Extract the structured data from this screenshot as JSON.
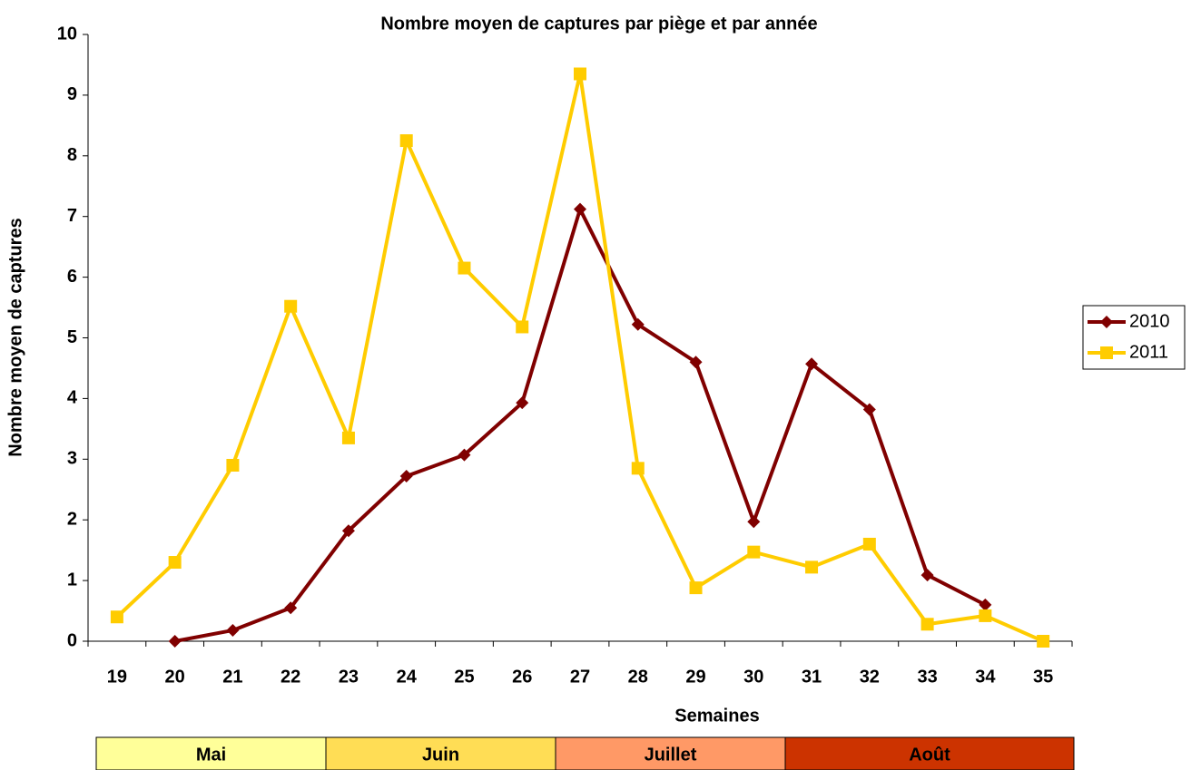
{
  "chart_data": {
    "type": "line",
    "title": "Nombre moyen de captures par piège et par année",
    "x_label": "Semaines",
    "y_label": "Nombre moyen de captures",
    "categories": [
      "19",
      "20",
      "21",
      "22",
      "23",
      "24",
      "25",
      "26",
      "27",
      "28",
      "29",
      "30",
      "31",
      "32",
      "33",
      "34",
      "35"
    ],
    "series": [
      {
        "name": "2010",
        "color": "#800000",
        "marker": "diamond",
        "values": [
          null,
          0,
          0.18,
          0.55,
          1.82,
          2.72,
          3.07,
          3.93,
          7.12,
          5.22,
          4.6,
          1.97,
          4.57,
          3.82,
          1.09,
          0.6,
          null
        ]
      },
      {
        "name": "2011",
        "color": "#ffcc00",
        "marker": "square",
        "values": [
          0.4,
          1.3,
          2.9,
          5.52,
          3.35,
          8.25,
          6.15,
          5.18,
          9.35,
          2.85,
          0.88,
          1.47,
          1.22,
          1.6,
          0.28,
          0.42,
          0
        ]
      }
    ],
    "ylim": [
      0,
      10
    ],
    "yticks": [
      0,
      1,
      2,
      3,
      4,
      5,
      6,
      7,
      8,
      9,
      10
    ],
    "grid": false,
    "legend": "right",
    "months": [
      {
        "name": "Mai",
        "color": "#ffff99"
      },
      {
        "name": "Juin",
        "color": "#ffdd55"
      },
      {
        "name": "Juillet",
        "color": "#ff9966"
      },
      {
        "name": "Août",
        "color": "#cc3300"
      }
    ]
  }
}
